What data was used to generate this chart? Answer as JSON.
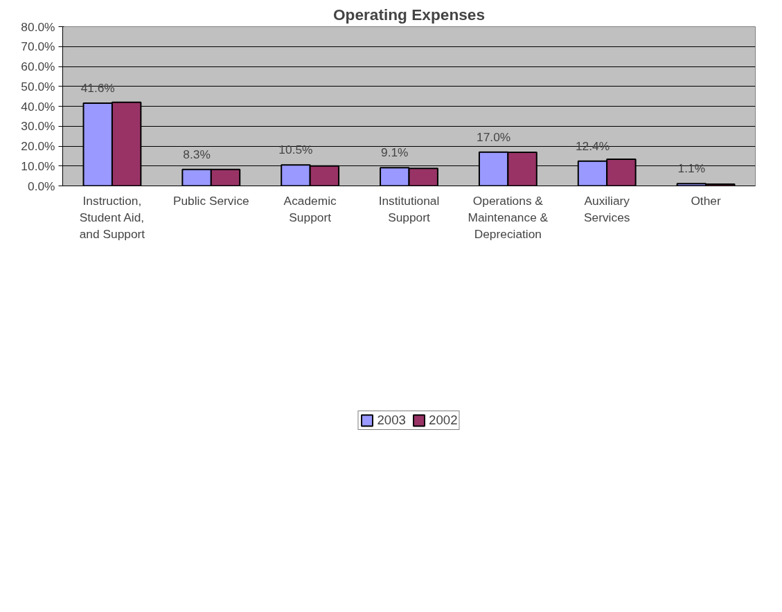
{
  "chart_data": {
    "type": "bar",
    "title": "Operating Expenses",
    "categories": [
      "Instruction, Student Aid, and Support",
      "Public Service",
      "Academic Support",
      "Institutional Support",
      "Operations & Maintenance & Depreciation",
      "Auxiliary Services",
      "Other"
    ],
    "series": [
      {
        "name": "2003",
        "color": "#9999ff",
        "values": [
          41.6,
          8.3,
          10.5,
          9.1,
          17.0,
          12.4,
          1.1
        ],
        "value_labels": [
          "41.6%",
          "8.3%",
          "10.5%",
          "9.1%",
          "17.0%",
          "12.4%",
          "1.1%"
        ]
      },
      {
        "name": "2002",
        "color": "#993366",
        "values": [
          42.0,
          8.3,
          10.0,
          8.8,
          16.9,
          13.4,
          0.9
        ]
      }
    ],
    "ylim": [
      0,
      80
    ],
    "yticks": [
      {
        "value": 0,
        "label": "0.0%"
      },
      {
        "value": 10,
        "label": "10.0%"
      },
      {
        "value": 20,
        "label": "20.0%"
      },
      {
        "value": 30,
        "label": "30.0%"
      },
      {
        "value": 40,
        "label": "40.0%"
      },
      {
        "value": 50,
        "label": "50.0%"
      },
      {
        "value": 60,
        "label": "60.0%"
      },
      {
        "value": 70,
        "label": "70.0%"
      },
      {
        "value": 80,
        "label": "80.0%"
      }
    ],
    "grid": "y",
    "legend": "bottom"
  }
}
